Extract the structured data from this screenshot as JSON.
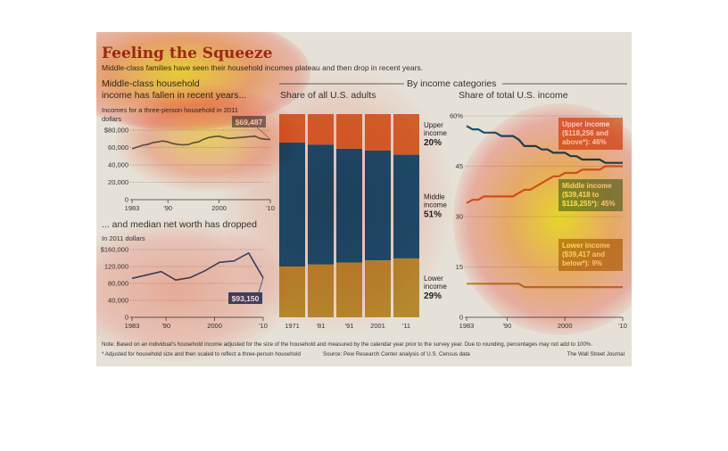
{
  "header": {
    "title": "Feeling the Squeeze",
    "subtitle": "Middle-class families have seen their household incomes plateau and then drop in recent years."
  },
  "footer": {
    "note": "Note: Based on an individual's household income adjusted for the size of the household and measured by the calendar year prior to the survey year. Due to rounding, percentages may not add to 100%.",
    "footnote": "* Adjusted for household size and then scaled to reflect a three-person household",
    "source": "Source: Pew Research Center analysis of U.S. Census data",
    "credit": "The Wall Street Journal"
  },
  "section_header": "By income categories",
  "colors": {
    "upper": "#d2622c",
    "middle": "#1e4f73",
    "lower": "#b58a2e",
    "income_line": "#5b5b5b",
    "networth_line": "#3f4a6e",
    "callout_income": "#7b7b7b",
    "callout_networth": "#3f4a6e"
  },
  "chart_data": [
    {
      "type": "line",
      "title": "Middle-class household income has fallen in recent years...",
      "subtitle": "Incomes for a three-person household in 2011 dollars",
      "x": [
        1983,
        1984,
        1985,
        1986,
        1987,
        1988,
        1989,
        1990,
        1991,
        1992,
        1993,
        1994,
        1995,
        1996,
        1997,
        1998,
        1999,
        2000,
        2001,
        2002,
        2003,
        2004,
        2005,
        2006,
        2007,
        2008,
        2009,
        2010
      ],
      "series": [
        {
          "values": [
            58500,
            60500,
            62500,
            63500,
            65500,
            66500,
            67500,
            66500,
            64500,
            63500,
            63000,
            63500,
            65500,
            66500,
            69500,
            71500,
            72500,
            73000,
            71500,
            70500,
            71000,
            71500,
            72000,
            72500,
            73000,
            70500,
            69500,
            69487
          ]
        }
      ],
      "ylim": [
        0,
        80000
      ],
      "yticks": [
        "$80,000",
        "60,000",
        "40,000",
        "20,000",
        "0"
      ],
      "yticks_values": [
        80000,
        60000,
        40000,
        20000,
        0
      ],
      "xticks": [
        "1983",
        "'90",
        "2000",
        "'10"
      ],
      "callout": "$69,487"
    },
    {
      "type": "line",
      "title": "... and median net worth has dropped",
      "subtitle": "In 2011 dollars",
      "x": [
        1983,
        1989,
        1992,
        1995,
        1998,
        2001,
        2004,
        2007,
        2010
      ],
      "series": [
        {
          "values": [
            92000,
            108000,
            88000,
            94000,
            110000,
            130000,
            133000,
            152000,
            93150
          ]
        }
      ],
      "ylim": [
        0,
        160000
      ],
      "yticks": [
        "$160,000",
        "120,000",
        "80,000",
        "40,000",
        "0"
      ],
      "yticks_values": [
        160000,
        120000,
        80000,
        40000,
        0
      ],
      "xticks": [
        "1983",
        "'90",
        "2000",
        "'10"
      ],
      "callout": "$93,150"
    },
    {
      "type": "bar",
      "title": "Share of all U.S. adults",
      "categories": [
        "1971",
        "'81",
        "'91",
        "2001",
        "'11"
      ],
      "series": [
        {
          "name": "Lower income",
          "values": [
            25,
            26,
            27,
            28,
            29
          ]
        },
        {
          "name": "Middle income",
          "values": [
            61,
            59,
            56,
            54,
            51
          ]
        },
        {
          "name": "Upper income",
          "values": [
            14,
            15,
            17,
            18,
            20
          ]
        }
      ],
      "ylim": [
        0,
        100
      ],
      "labels": [
        {
          "name": "Upper income",
          "lines": [
            "Upper",
            "income"
          ],
          "value": "20%"
        },
        {
          "name": "Middle income",
          "lines": [
            "Middle",
            "income"
          ],
          "value": "51%"
        },
        {
          "name": "Lower income",
          "lines": [
            "Lower",
            "income"
          ],
          "value": "29%"
        }
      ]
    },
    {
      "type": "line",
      "title": "Share of total U.S. income",
      "x": [
        1983,
        1984,
        1985,
        1986,
        1987,
        1988,
        1989,
        1990,
        1991,
        1992,
        1993,
        1994,
        1995,
        1996,
        1997,
        1998,
        1999,
        2000,
        2001,
        2002,
        2003,
        2004,
        2005,
        2006,
        2007,
        2008,
        2009,
        2010
      ],
      "series": [
        {
          "name": "Upper income ($118,256 and above*): 46%",
          "values": [
            57,
            56,
            56,
            55,
            55,
            55,
            54,
            54,
            54,
            53,
            51,
            51,
            51,
            50,
            50,
            49,
            49,
            49,
            48,
            48,
            47,
            47,
            47,
            47,
            46,
            46,
            46,
            46
          ]
        },
        {
          "name": "Middle income ($39,418 to $118,255*): 45%",
          "values": [
            34,
            35,
            35,
            36,
            36,
            36,
            36,
            36,
            36,
            37,
            38,
            38,
            39,
            40,
            41,
            42,
            42,
            43,
            43,
            43,
            44,
            44,
            44,
            44,
            45,
            45,
            45,
            45
          ]
        },
        {
          "name": "Lower income ($39,417 and below*): 9%",
          "values": [
            10,
            10,
            10,
            10,
            10,
            10,
            10,
            10,
            10,
            10,
            9,
            9,
            9,
            9,
            9,
            9,
            9,
            9,
            9,
            9,
            9,
            9,
            9,
            9,
            9,
            9,
            9,
            9
          ]
        }
      ],
      "ylim": [
        0,
        60
      ],
      "yticks": [
        "60%",
        "45",
        "30",
        "15",
        "0"
      ],
      "yticks_values": [
        60,
        45,
        30,
        15,
        0
      ],
      "xticks": [
        "1983",
        "'90",
        "2000",
        "'10"
      ]
    }
  ]
}
